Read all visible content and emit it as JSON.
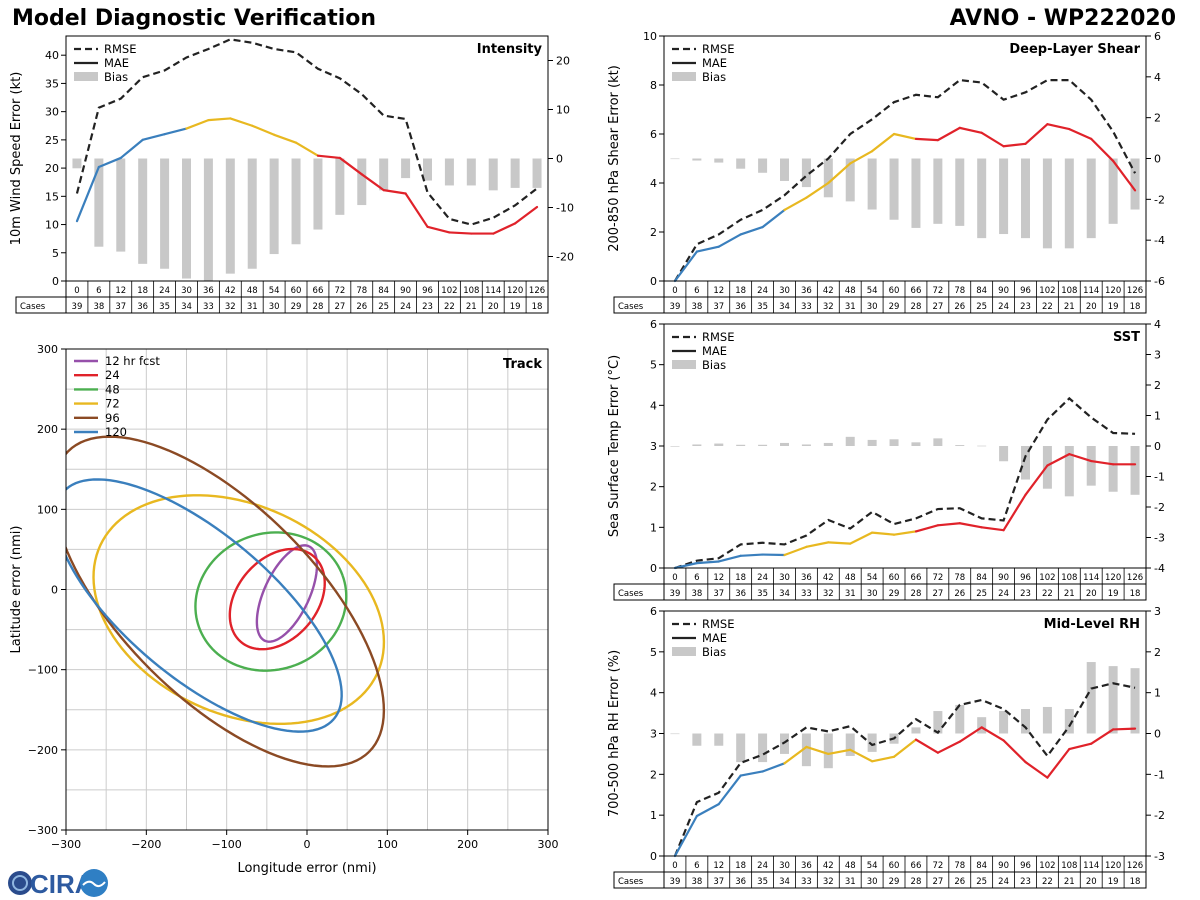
{
  "header": {
    "title": "Model Diagnostic Verification",
    "storm": "AVNO - WP222020"
  },
  "logo": {
    "text": "CIRA"
  },
  "legend_labels": {
    "rmse": "RMSE",
    "mae": "MAE",
    "bias": "Bias"
  },
  "hours": [
    0,
    6,
    12,
    18,
    24,
    30,
    36,
    42,
    48,
    54,
    60,
    66,
    72,
    78,
    84,
    90,
    96,
    102,
    108,
    114,
    120,
    126
  ],
  "cases": [
    39,
    38,
    37,
    36,
    35,
    34,
    33,
    32,
    31,
    30,
    29,
    28,
    27,
    26,
    25,
    24,
    23,
    22,
    21,
    20,
    19,
    18
  ],
  "cases_label": "Cases",
  "colors": {
    "rmse": "#222222",
    "bias": "#c8c8c8",
    "segments": [
      "#3a7fbd",
      "#e8b820",
      "#e0222a"
    ]
  },
  "chart_data": [
    {
      "id": "intensity",
      "type": "line",
      "title": "Intensity",
      "ylabel": "10m Wind Speed Error (kt)",
      "ylim": [
        0,
        43.4
      ],
      "yticks": [
        0,
        5,
        10,
        15,
        20,
        25,
        30,
        35,
        40
      ],
      "y2lim": [
        -25,
        25
      ],
      "y2ticks": [
        -20,
        -10,
        0,
        10,
        20
      ],
      "x": [
        0,
        6,
        12,
        18,
        24,
        30,
        36,
        42,
        48,
        54,
        60,
        66,
        72,
        78,
        84,
        90,
        96,
        102,
        108,
        114,
        120,
        126
      ],
      "rmse": [
        15.5,
        30.7,
        32.3,
        36.1,
        37.3,
        39.6,
        41.1,
        42.8,
        42.2,
        41.1,
        40.5,
        37.6,
        35.9,
        33.1,
        29.3,
        28.7,
        15.7,
        11.0,
        10.0,
        11.2,
        13.4,
        16.4
      ],
      "mae": [
        10.6,
        20.2,
        21.8,
        25.0,
        26.0,
        27.0,
        28.5,
        28.8,
        27.5,
        25.9,
        24.5,
        22.2,
        21.8,
        18.9,
        16.1,
        15.5,
        9.6,
        8.6,
        8.4,
        8.4,
        10.2,
        13.1
      ],
      "bias": [
        -2,
        -18,
        -19,
        -21.5,
        -22.5,
        -24.5,
        -25,
        -23.5,
        -22.5,
        -19.5,
        -17.5,
        -14.5,
        -11.5,
        -9.5,
        -6.5,
        -4,
        -4.5,
        -5.5,
        -5.5,
        -6.5,
        -6,
        -6
      ]
    },
    {
      "id": "shear",
      "type": "line",
      "title": "Deep-Layer Shear",
      "ylabel": "200-850 hPa Shear Error (kt)",
      "ylim": [
        0,
        10
      ],
      "yticks": [
        0,
        2,
        4,
        6,
        8,
        10
      ],
      "y2lim": [
        -6,
        6
      ],
      "y2ticks": [
        -6,
        -4,
        -2,
        0,
        2,
        4,
        6
      ],
      "x": [
        0,
        6,
        12,
        18,
        24,
        30,
        36,
        42,
        48,
        54,
        60,
        66,
        72,
        78,
        84,
        90,
        96,
        102,
        108,
        114,
        120,
        126
      ],
      "rmse": [
        0,
        1.5,
        1.9,
        2.5,
        2.9,
        3.5,
        4.3,
        5.0,
        6.0,
        6.6,
        7.3,
        7.6,
        7.5,
        8.2,
        8.1,
        7.4,
        7.7,
        8.2,
        8.2,
        7.4,
        6.1,
        4.4
      ],
      "mae": [
        0,
        1.2,
        1.4,
        1.9,
        2.2,
        2.9,
        3.4,
        4.0,
        4.8,
        5.3,
        6.0,
        5.8,
        5.75,
        6.25,
        6.05,
        5.5,
        5.6,
        6.4,
        6.2,
        5.8,
        4.9,
        3.7
      ],
      "bias": [
        0,
        -0.1,
        -0.2,
        -0.5,
        -0.7,
        -1.1,
        -1.4,
        -1.9,
        -2.1,
        -2.5,
        -3.0,
        -3.4,
        -3.2,
        -3.3,
        -3.9,
        -3.7,
        -3.9,
        -4.4,
        -4.4,
        -3.9,
        -3.2,
        -2.5
      ]
    },
    {
      "id": "sst",
      "type": "line",
      "title": "SST",
      "ylabel": "Sea Surface Temp Error (°C)",
      "ylim": [
        0,
        6
      ],
      "yticks": [
        0,
        1,
        2,
        3,
        4,
        5,
        6
      ],
      "y2lim": [
        -4,
        4
      ],
      "y2ticks": [
        -4,
        -3,
        -2,
        -1,
        0,
        1,
        2,
        3,
        4
      ],
      "x": [
        0,
        6,
        12,
        18,
        24,
        30,
        36,
        42,
        48,
        54,
        60,
        66,
        72,
        78,
        84,
        90,
        96,
        102,
        108,
        114,
        120,
        126
      ],
      "rmse": [
        0,
        0.18,
        0.24,
        0.58,
        0.62,
        0.58,
        0.8,
        1.18,
        0.97,
        1.38,
        1.08,
        1.22,
        1.45,
        1.47,
        1.22,
        1.17,
        2.75,
        3.65,
        4.17,
        3.7,
        3.32,
        3.3
      ],
      "mae": [
        0,
        0.12,
        0.16,
        0.3,
        0.33,
        0.32,
        0.52,
        0.63,
        0.6,
        0.87,
        0.82,
        0.9,
        1.05,
        1.1,
        1.0,
        0.93,
        1.8,
        2.52,
        2.8,
        2.63,
        2.55,
        2.55
      ],
      "bias": [
        0,
        0.05,
        0.08,
        0.04,
        0.04,
        0.1,
        0.05,
        0.1,
        0.3,
        0.2,
        0.22,
        0.12,
        0.25,
        0.03,
        0.01,
        -0.5,
        -1.1,
        -1.4,
        -1.65,
        -1.3,
        -1.5,
        -1.6
      ]
    },
    {
      "id": "rh",
      "type": "line",
      "title": "Mid-Level RH",
      "ylabel": "700-500 hPa RH Error (%)",
      "ylim": [
        0,
        6
      ],
      "yticks": [
        0,
        1,
        2,
        3,
        4,
        5,
        6
      ],
      "y2lim": [
        -3,
        3
      ],
      "y2ticks": [
        -3,
        -2,
        -1,
        0,
        1,
        2,
        3
      ],
      "x": [
        0,
        6,
        12,
        18,
        24,
        30,
        36,
        42,
        48,
        54,
        60,
        66,
        72,
        78,
        84,
        90,
        96,
        102,
        108,
        114,
        120,
        126
      ],
      "rmse": [
        0,
        1.32,
        1.55,
        2.28,
        2.48,
        2.78,
        3.15,
        3.05,
        3.18,
        2.72,
        2.88,
        3.35,
        3.02,
        3.7,
        3.82,
        3.6,
        3.15,
        2.45,
        3.18,
        4.1,
        4.23,
        4.12
      ],
      "mae": [
        0,
        0.98,
        1.27,
        1.97,
        2.07,
        2.27,
        2.67,
        2.5,
        2.6,
        2.32,
        2.43,
        2.85,
        2.53,
        2.8,
        3.15,
        2.83,
        2.3,
        1.92,
        2.62,
        2.75,
        3.1,
        3.12
      ],
      "bias": [
        0,
        -0.3,
        -0.3,
        -0.7,
        -0.7,
        -0.5,
        -0.8,
        -0.85,
        -0.55,
        -0.45,
        -0.25,
        0.15,
        0.55,
        0.7,
        0.4,
        0.55,
        0.6,
        0.65,
        0.6,
        1.75,
        1.65,
        1.6
      ]
    },
    {
      "id": "track",
      "type": "scatter",
      "title": "Track",
      "xlabel": "Longitude error (nmi)",
      "ylabel": "Latitude error (nmi)",
      "xlim": [
        -300,
        300
      ],
      "ylim": [
        -300,
        300
      ],
      "ticks": [
        -300,
        -200,
        -100,
        0,
        100,
        200,
        300
      ],
      "grid_step": 50,
      "ellipses": [
        {
          "label": "12 hr fcst",
          "color": "#9650aa",
          "cx": -25,
          "cy": -5,
          "a": 65,
          "b": 28,
          "angle_deg": 65
        },
        {
          "label": "24",
          "color": "#e0222a",
          "cx": -37,
          "cy": -12,
          "a": 70,
          "b": 50,
          "angle_deg": 50
        },
        {
          "label": "48",
          "color": "#4caf50",
          "cx": -45,
          "cy": -15,
          "a": 95,
          "b": 85,
          "angle_deg": 20
        },
        {
          "label": "72",
          "color": "#e8b820",
          "cx": -85,
          "cy": -25,
          "a": 190,
          "b": 130,
          "angle_deg": -25
        },
        {
          "label": "96",
          "color": "#8b4a24",
          "cx": -110,
          "cy": -15,
          "a": 265,
          "b": 120,
          "angle_deg": -45
        },
        {
          "label": "120",
          "color": "#3a7fbd",
          "cx": -135,
          "cy": -20,
          "a": 220,
          "b": 90,
          "angle_deg": -40
        }
      ]
    }
  ]
}
